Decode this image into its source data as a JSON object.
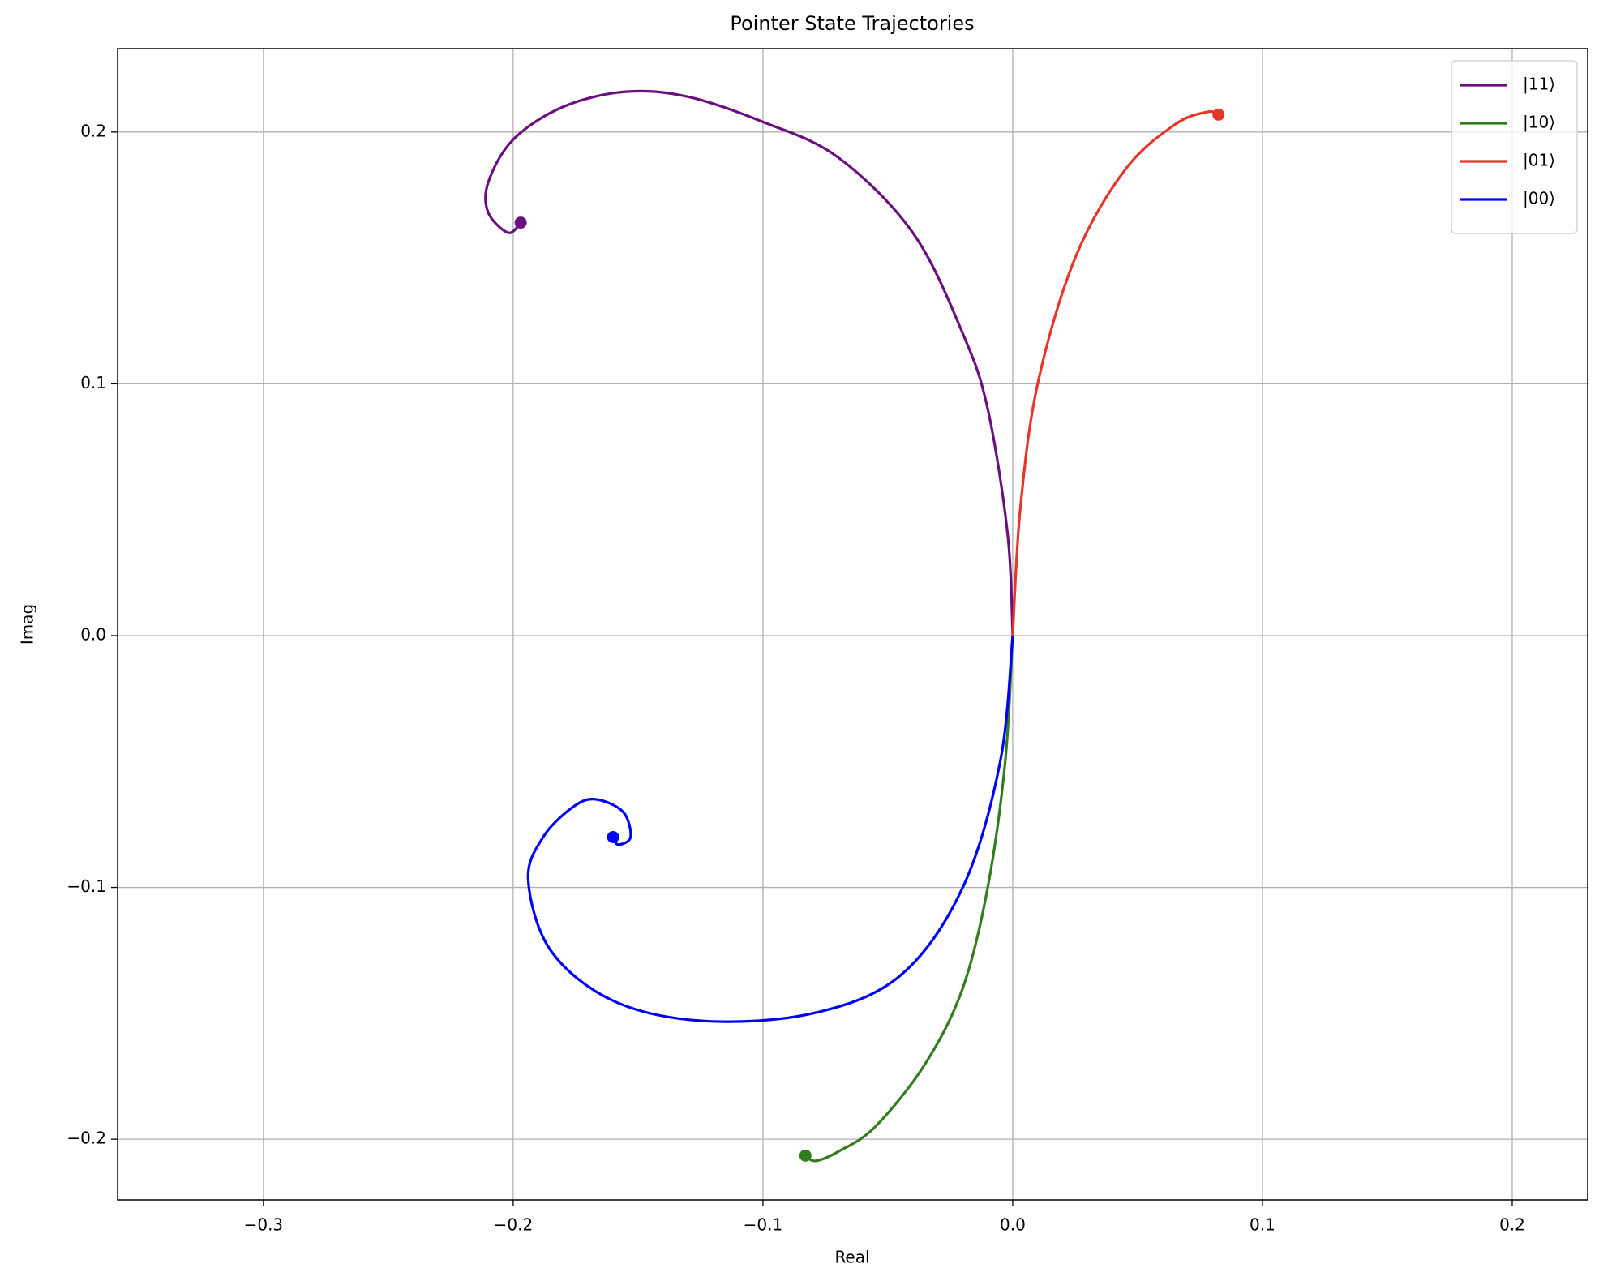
{
  "chart_data": {
    "type": "line",
    "title": "Pointer State Trajectories",
    "x_label": "Real",
    "y_label": "Imag",
    "xlim": [
      -0.3584,
      0.2302
    ],
    "ylim": [
      -0.2241,
      0.2331
    ],
    "xticks": [
      {
        "value": -0.3,
        "label": "−0.3"
      },
      {
        "value": -0.2,
        "label": "−0.2"
      },
      {
        "value": -0.1,
        "label": "−0.1"
      },
      {
        "value": 0.0,
        "label": "0.0"
      },
      0.1,
      0.2
    ],
    "yticks": [
      {
        "value": -0.2,
        "label": "−0.2"
      },
      {
        "value": -0.1,
        "label": "−0.1"
      },
      {
        "value": 0.0,
        "label": "0.0"
      },
      0.1,
      0.2
    ],
    "grid": true,
    "legend": "upper right",
    "end_markers": true,
    "series": [
      {
        "name": "|11⟩",
        "color": "#6a0f80",
        "x": [
          0,
          -0.002,
          -0.01,
          -0.02,
          -0.04,
          -0.07,
          -0.1,
          -0.13,
          -0.155,
          -0.18,
          -0.2,
          -0.21,
          -0.21,
          -0.202,
          -0.197
        ],
        "values": [
          0,
          0.04,
          0.09,
          0.12,
          0.16,
          0.19,
          0.204,
          0.214,
          0.216,
          0.21,
          0.197,
          0.18,
          0.168,
          0.16,
          0.164
        ]
      },
      {
        "name": "|10⟩",
        "color": "#317d1e",
        "x": [
          0,
          -0.003,
          -0.01,
          -0.02,
          -0.035,
          -0.055,
          -0.07,
          -0.079,
          -0.083
        ],
        "values": [
          0,
          -0.05,
          -0.1,
          -0.14,
          -0.17,
          -0.195,
          -0.205,
          -0.2086,
          -0.2065
        ]
      },
      {
        "name": "|01⟩",
        "color": "#e8352a",
        "x": [
          0,
          0.003,
          0.01,
          0.025,
          0.045,
          0.065,
          0.078,
          0.0824
        ],
        "values": [
          0,
          0.05,
          0.1,
          0.15,
          0.185,
          0.203,
          0.208,
          0.2069
        ]
      },
      {
        "name": "|00⟩",
        "color": "#0000ff",
        "x": [
          0,
          -0.005,
          -0.02,
          -0.045,
          -0.08,
          -0.124,
          -0.16,
          -0.185,
          -0.194,
          -0.188,
          -0.176,
          -0.167,
          -0.156,
          -0.153,
          -0.158,
          -0.16
        ],
        "values": [
          0,
          -0.05,
          -0.1,
          -0.135,
          -0.15,
          -0.153,
          -0.145,
          -0.125,
          -0.097,
          -0.08,
          -0.068,
          -0.065,
          -0.07,
          -0.08,
          -0.083,
          -0.08
        ]
      }
    ]
  }
}
